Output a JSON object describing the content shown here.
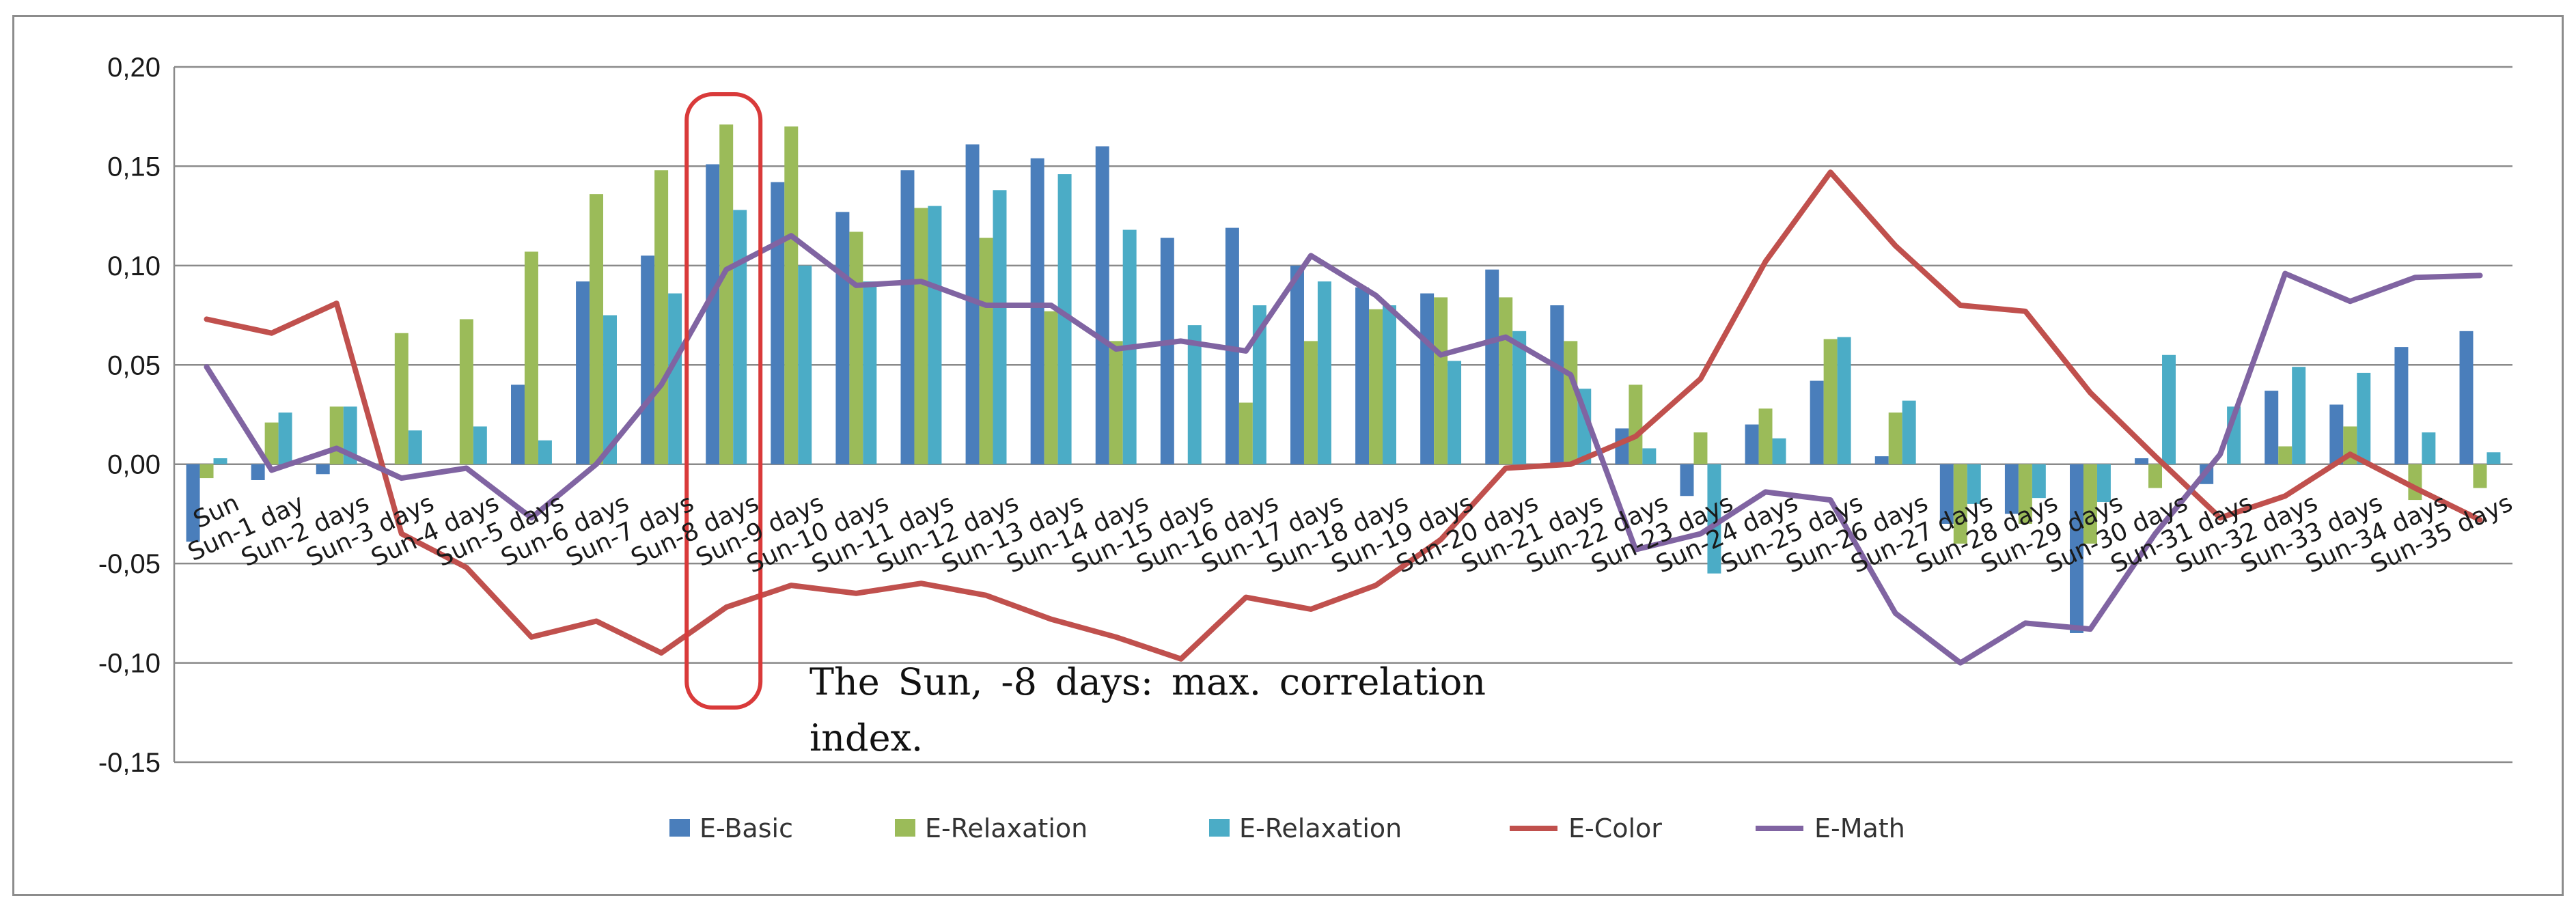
{
  "chart_data": {
    "type": "bar",
    "categories": [
      "Sun",
      "Sun-1 day",
      "Sun-2 days",
      "Sun-3 days",
      "Sun-4 days",
      "Sun-5 days",
      "Sun-6 days",
      "Sun-7 days",
      "Sun-8 days",
      "Sun-9 days",
      "Sun-10 days",
      "Sun-11 days",
      "Sun-12 days",
      "Sun-13 days",
      "Sun-14 days",
      "Sun-15 days",
      "Sun-16 days",
      "Sun-17 days",
      "Sun-18 days",
      "Sun-19 days",
      "Sun-20 days",
      "Sun-21 days",
      "Sun-22 days",
      "Sun-23 days",
      "Sun-24 days",
      "Sun-25 days",
      "Sun-26 days",
      "Sun-27 days",
      "Sun-28 days",
      "Sun-29 days",
      "Sun-30 days",
      "Sun-31 days",
      "Sun-32 days",
      "Sun-33 days",
      "Sun-34 days",
      "Sun-35 days"
    ],
    "series": [
      {
        "name": "E-Basic",
        "kind": "bar",
        "color": "#4a7ebb",
        "values": [
          -0.039,
          -0.008,
          -0.005,
          0.0,
          0.0,
          0.04,
          0.092,
          0.105,
          0.151,
          0.142,
          0.127,
          0.148,
          0.161,
          0.154,
          0.16,
          0.114,
          0.119,
          0.1,
          0.089,
          0.086,
          0.098,
          0.08,
          0.018,
          -0.016,
          0.02,
          0.042,
          0.004,
          -0.03,
          -0.025,
          -0.085,
          0.003,
          -0.01,
          0.037,
          0.03,
          0.059,
          0.067
        ]
      },
      {
        "name": "E-Relaxation",
        "kind": "bar",
        "color": "#9bbb59",
        "values": [
          -0.007,
          0.021,
          0.029,
          0.066,
          0.073,
          0.107,
          0.136,
          0.148,
          0.171,
          0.17,
          0.117,
          0.129,
          0.114,
          0.077,
          0.062,
          0.0,
          0.031,
          0.062,
          0.078,
          0.084,
          0.084,
          0.062,
          0.04,
          0.016,
          0.028,
          0.063,
          0.026,
          -0.04,
          -0.03,
          -0.04,
          -0.012,
          0.0,
          0.009,
          0.019,
          -0.018,
          -0.012
        ]
      },
      {
        "name": "E-Relaxation",
        "kind": "bar",
        "color": "#4bacc6",
        "values": [
          0.003,
          0.026,
          0.029,
          0.017,
          0.019,
          0.012,
          0.075,
          0.086,
          0.128,
          0.1,
          0.092,
          0.13,
          0.138,
          0.146,
          0.118,
          0.07,
          0.08,
          0.092,
          0.08,
          0.052,
          0.067,
          0.038,
          0.008,
          -0.055,
          0.013,
          0.064,
          0.032,
          -0.02,
          -0.017,
          -0.019,
          0.055,
          0.029,
          0.049,
          0.046,
          0.016,
          0.006
        ]
      },
      {
        "name": "E-Color",
        "kind": "line",
        "color": "#c0504d",
        "values": [
          0.073,
          0.066,
          0.081,
          -0.035,
          -0.052,
          -0.087,
          -0.079,
          -0.095,
          -0.072,
          -0.061,
          -0.065,
          -0.06,
          -0.066,
          -0.078,
          -0.087,
          -0.098,
          -0.067,
          -0.073,
          -0.061,
          -0.038,
          -0.002,
          0.0,
          0.014,
          0.043,
          0.102,
          0.147,
          0.11,
          0.08,
          0.077,
          0.036,
          0.004,
          -0.027,
          -0.016,
          0.005,
          -0.012,
          -0.028
        ]
      },
      {
        "name": "E-Math",
        "kind": "line",
        "color": "#8064a2",
        "values": [
          0.049,
          -0.003,
          0.008,
          -0.007,
          -0.002,
          -0.027,
          0.0,
          0.04,
          0.098,
          0.115,
          0.09,
          0.092,
          0.08,
          0.08,
          0.058,
          0.062,
          0.057,
          0.105,
          0.085,
          0.055,
          0.064,
          0.045,
          -0.043,
          -0.035,
          -0.014,
          -0.018,
          -0.075,
          -0.1,
          -0.08,
          -0.083,
          -0.035,
          0.005,
          0.096,
          0.082,
          0.094,
          0.095
        ]
      }
    ],
    "ylim": [
      -0.15,
      0.2
    ],
    "yticks": [
      -0.15,
      -0.1,
      -0.05,
      0.0,
      0.05,
      0.1,
      0.15,
      0.2
    ],
    "ytick_labels": [
      "-0,15",
      "-0,10",
      "-0,05",
      "0,00",
      "0,05",
      "0,10",
      "0,15",
      "0,20"
    ],
    "gridlines": true,
    "legend_position": "bottom",
    "legend": [
      "E-Basic",
      "E-Relaxation",
      "E-Relaxation",
      "E-Color",
      "E-Math"
    ],
    "highlight_category": "Sun-8 days",
    "highlight_color": "#d93a3a",
    "annotation": "The Sun, -8 days: max. correlation index."
  }
}
